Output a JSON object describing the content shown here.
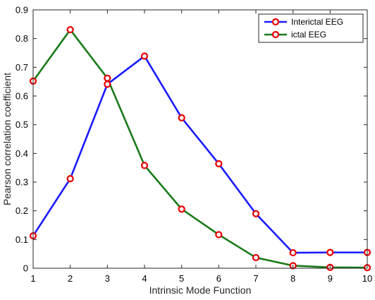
{
  "chart_data": {
    "type": "line",
    "title": "",
    "xlabel": "Intrinsic Mode Function",
    "ylabel": "Pearson correlation coefficient",
    "x": [
      1,
      2,
      3,
      4,
      5,
      6,
      7,
      8,
      9,
      10
    ],
    "xlim": [
      1,
      10
    ],
    "ylim": [
      0,
      0.9
    ],
    "xticks": [
      1,
      2,
      3,
      4,
      5,
      6,
      7,
      8,
      9,
      10
    ],
    "yticks": [
      0,
      0.1,
      0.2,
      0.3,
      0.4,
      0.5,
      0.6,
      0.7,
      0.8,
      0.9
    ],
    "grid": false,
    "legend_position": "top-right",
    "marker": "circle",
    "marker_color": "#e60000",
    "series": [
      {
        "name": "Interictal EEG",
        "color": "#1a1aff",
        "values": [
          0.113,
          0.312,
          0.641,
          0.739,
          0.524,
          0.364,
          0.19,
          0.054,
          0.055,
          0.055
        ]
      },
      {
        "name": "ictal EEG",
        "color": "#1a7a1a",
        "values": [
          0.652,
          0.831,
          0.662,
          0.358,
          0.206,
          0.117,
          0.037,
          0.009,
          0.003,
          0.002
        ]
      }
    ]
  }
}
